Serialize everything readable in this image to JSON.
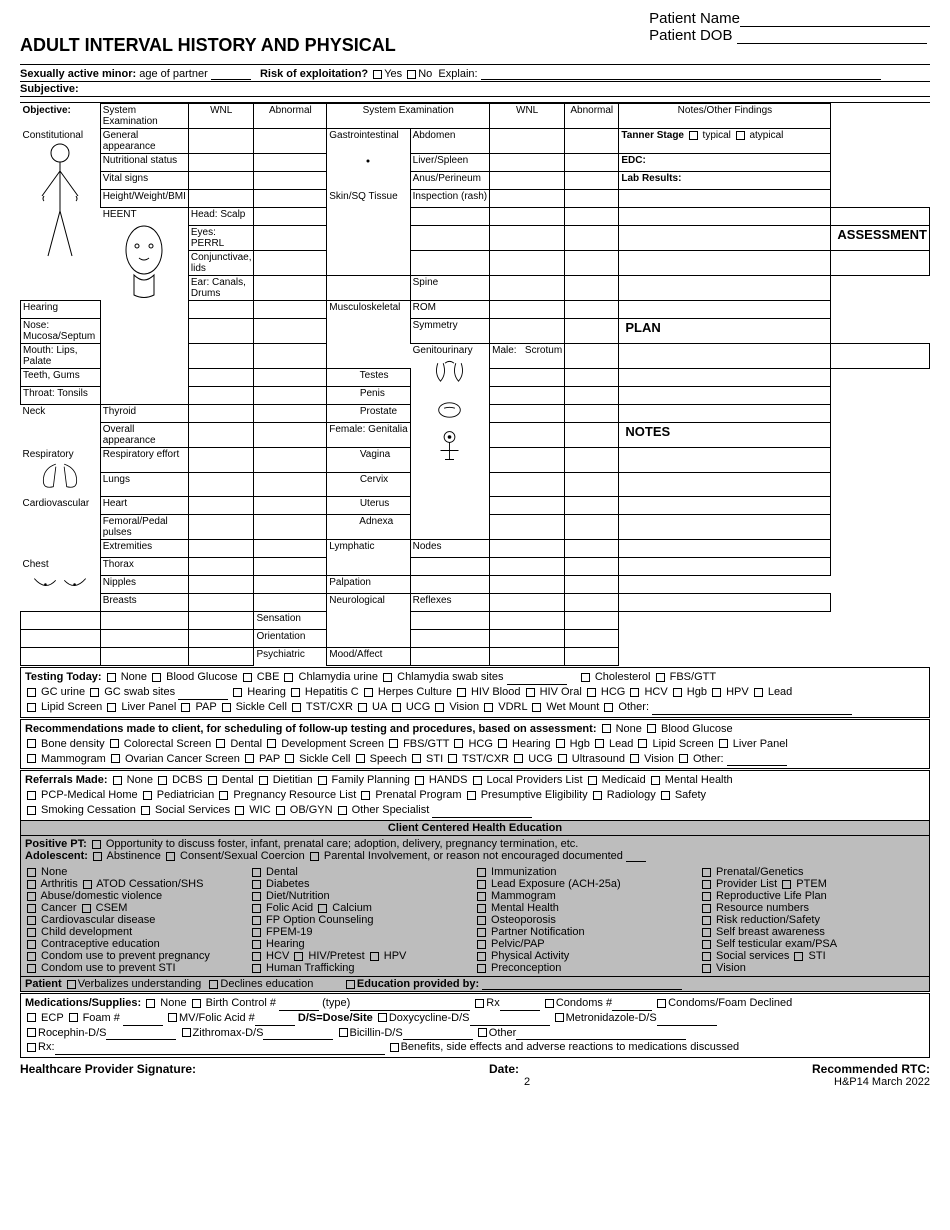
{
  "header": {
    "title": "ADULT INTERVAL HISTORY AND PHYSICAL",
    "patient_name_label": "Patient Name",
    "patient_dob_label": "Patient DOB"
  },
  "line1": {
    "sam": "Sexually active minor:",
    "age": "age of partner",
    "risk": "Risk of exploitation?",
    "yes": "Yes",
    "no": "No",
    "explain": "Explain:"
  },
  "subjective": "Subjective:",
  "objective": {
    "label": "Objective:",
    "sys_exam": "System Examination",
    "wnl": "WNL",
    "abn": "Abnormal",
    "notes_hdr": "Notes/Other Findings"
  },
  "left_systems": [
    {
      "sys": "Constitutional",
      "items": [
        "General appearance",
        "Nutritional status",
        "Vital signs",
        "Height/Weight/BMI"
      ]
    },
    {
      "sys": "HEENT",
      "items": [
        "Head: Scalp",
        "Eyes: PERRL",
        "Conjunctivae, lids",
        "Ear: Canals, Drums",
        "Hearing",
        "Nose: Mucosa/Septum",
        "Mouth: Lips, Palate",
        "Teeth, Gums",
        "Throat: Tonsils"
      ]
    },
    {
      "sys": "Neck",
      "items": [
        "Thyroid",
        "Overall appearance"
      ]
    },
    {
      "sys": "Respiratory",
      "items": [
        "Respiratory effort",
        "Lungs"
      ]
    },
    {
      "sys": "Cardiovascular",
      "items": [
        "Heart",
        "Femoral/Pedal pulses",
        "Extremities"
      ]
    },
    {
      "sys": "Chest",
      "items": [
        "Thorax",
        "Nipples",
        "Breasts"
      ]
    }
  ],
  "right_systems": [
    {
      "sys": "Gastrointestinal",
      "items": [
        "Abdomen",
        "Liver/Spleen",
        "Anus/Perineum"
      ]
    },
    {
      "sys": "Skin/SQ Tissue",
      "items": [
        "Inspection (rash)",
        " ",
        " ",
        " "
      ]
    },
    {
      "sys": "Musculoskeletal",
      "prefix": [
        "Spine"
      ],
      "items": [
        "ROM",
        "Symmetry"
      ]
    },
    {
      "sys": "Genitourinary",
      "items": [
        "Male:   Scrotum",
        "           Testes",
        "           Penis",
        "           Prostate",
        "Female: Genitalia",
        "           Vagina",
        "           Cervix",
        "           Uterus",
        "           Adnexa"
      ]
    },
    {
      "sys": "Lymphatic",
      "items": [
        "Nodes",
        " "
      ]
    },
    {
      "sys": "Neurological",
      "prefix": [
        "Palpation"
      ],
      "items": [
        "Reflexes",
        "Sensation"
      ]
    },
    {
      "sys": "Psychiatric",
      "prefix": [
        "Orientation"
      ],
      "items": [
        "Mood/Affect"
      ]
    }
  ],
  "notes_section": {
    "tanner": "Tanner Stage",
    "typical": "typical",
    "atypical": "atypical",
    "edc": "EDC:",
    "lab": "Lab Results:",
    "assess": "ASSESSMENT",
    "plan": "PLAN",
    "notes": "NOTES"
  },
  "testing": {
    "label": "Testing Today:",
    "row1": [
      "None",
      "Blood Glucose",
      "CBE",
      "Chlamydia urine",
      "Chlamydia swab sites"
    ],
    "row1b": [
      "Cholesterol",
      "FBS/GTT"
    ],
    "row2a": [
      "GC urine",
      "GC swab sites"
    ],
    "row2b": [
      "Hearing",
      "Hepatitis C",
      "Herpes Culture",
      "HIV Blood",
      "HIV Oral",
      "HCG",
      "HCV",
      "Hgb",
      "HPV",
      "Lead"
    ],
    "row3": [
      "Lipid Screen",
      "Liver Panel",
      "PAP",
      "Sickle Cell",
      "TST/CXR",
      "UA",
      "UCG",
      "Vision",
      "VDRL",
      "Wet Mount",
      "Other:"
    ]
  },
  "recs": {
    "label": "Recommendations made to client, for scheduling of follow-up testing and procedures, based on assessment:",
    "row1": [
      "None",
      "Blood Glucose"
    ],
    "row2": [
      "Bone density",
      "Colorectal Screen",
      "Dental",
      "Development Screen",
      "FBS/GTT",
      "HCG",
      "Hearing",
      "Hgb",
      "Lead",
      "Lipid Screen",
      "Liver Panel"
    ],
    "row3": [
      "Mammogram",
      "Ovarian Cancer Screen",
      "PAP",
      "Sickle Cell",
      "Speech",
      "STI",
      "TST/CXR",
      "UCG",
      "Ultrasound",
      "Vision",
      "Other:"
    ]
  },
  "refs": {
    "label": "Referrals Made:",
    "row1": [
      "None",
      "DCBS",
      "Dental",
      "Dietitian",
      "Family Planning",
      "HANDS",
      "Local Providers List",
      "Medicaid",
      "Mental Health"
    ],
    "row2": [
      "PCP-Medical Home",
      "Pediatrician",
      "Pregnancy Resource List",
      "Prenatal Program",
      "Presumptive Eligibility",
      "Radiology",
      "Safety"
    ],
    "row3": [
      "Smoking Cessation",
      "Social Services",
      "WIC",
      "OB/GYN",
      "Other Specialist"
    ]
  },
  "cche": "Client Centered Health Education",
  "ppt": {
    "label": "Positive PT:",
    "text": "Opportunity to discuss foster, infant, prenatal care; adoption, delivery, pregnancy termination, etc.",
    "adol": "Adolescent:",
    "items": [
      "Abstinence",
      "Consent/Sexual Coercion",
      "Parental Involvement, or reason not encouraged documented"
    ]
  },
  "edu_cols": [
    [
      "None",
      "Arthritis ☐ ATOD Cessation/SHS",
      "Abuse/domestic violence",
      "Cancer ☐ CSEM",
      "Cardiovascular disease",
      "Child development",
      "Contraceptive education",
      "Condom use to prevent pregnancy",
      "Condom use to prevent STI"
    ],
    [
      "Dental",
      "Diabetes",
      "Diet/Nutrition",
      "Folic Acid ☐ Calcium",
      "FP Option Counseling",
      "FPEM-19",
      "Hearing",
      "HCV  ☐ HIV/Pretest  ☐ HPV",
      "Human Trafficking"
    ],
    [
      "Immunization",
      "Lead Exposure (ACH-25a)",
      "Mammogram",
      "Mental Health",
      "Osteoporosis",
      "Partner Notification",
      "Pelvic/PAP",
      "Physical Activity",
      "Preconception"
    ],
    [
      "Prenatal/Genetics",
      "Provider List          ☐ PTEM",
      "Reproductive Life Plan",
      "Resource numbers",
      "Risk reduction/Safety",
      "Self breast awareness",
      "Self testicular exam/PSA",
      "Social services      ☐ STI",
      "Vision"
    ]
  ],
  "patient_line": {
    "label": "Patient",
    "verb": "Verbalizes understanding",
    "decl": "Declines education",
    "eduby": "Education provided by:"
  },
  "meds": {
    "label": "Medications/Supplies:",
    "row1_a": [
      "None",
      "Birth Control #"
    ],
    "type": "(type)",
    "rx": "Rx",
    "condoms": "Condoms #",
    "declined": "Condoms/Foam Declined",
    "row2_a": [
      "ECP",
      "Foam #"
    ],
    "mvfa": "MV/Folic Acid #",
    "ds": "D/S=Dose/Site",
    "doxy": "Doxycycline-D/S",
    "metro": "Metronidazole-D/S",
    "roc": "Rocephin-D/S",
    "zith": "Zithromax-D/S",
    "bic": "Bicillin-D/S",
    "other": "Other",
    "rxline": "Rx:",
    "benefits": "Benefits, side effects and adverse reactions to medications discussed"
  },
  "footer": {
    "sig": "Healthcare Provider Signature:",
    "date": "Date:",
    "rtc": "Recommended RTC:",
    "page": "2",
    "formid": "H&P14 March 2022"
  }
}
